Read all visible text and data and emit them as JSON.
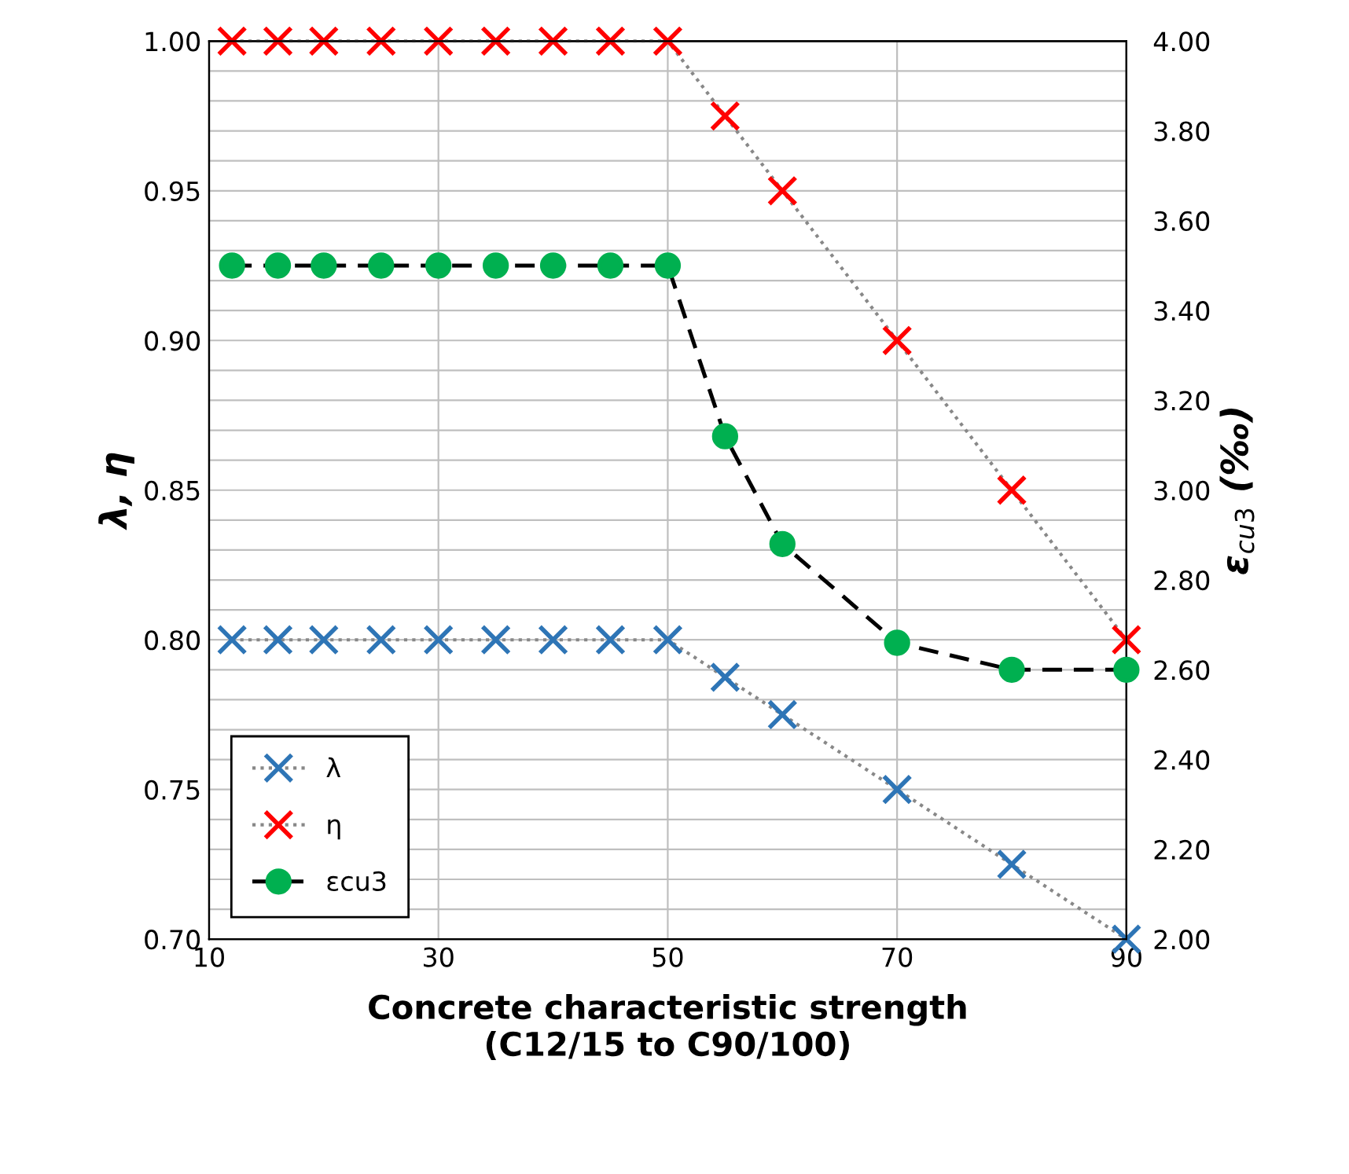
{
  "chart_data": {
    "type": "line",
    "xlabel": "Concrete characteristic strength\n(C12/15 to C90/100)",
    "ylabel": "λ, η",
    "y2label": "ε$_{cu3}$ (‰)",
    "x": [
      12,
      16,
      20,
      25,
      30,
      35,
      40,
      45,
      50,
      55,
      60,
      70,
      80,
      90
    ],
    "series": [
      {
        "name": "λ",
        "color": "#2e75b6",
        "marker": "cross",
        "line_style": "dotted",
        "values": [
          0.8,
          0.8,
          0.8,
          0.8,
          0.8,
          0.8,
          0.8,
          0.8,
          0.8,
          0.7875,
          0.775,
          0.75,
          0.725,
          0.7
        ]
      },
      {
        "name": "η",
        "color": "#ff0000",
        "marker": "cross",
        "line_style": "dotted",
        "values": [
          1.0,
          1.0,
          1.0,
          1.0,
          1.0,
          1.0,
          1.0,
          1.0,
          1.0,
          0.975,
          0.95,
          0.9,
          0.85,
          0.8
        ]
      },
      {
        "name": "εcu3",
        "color": "#00b050",
        "marker": "circle",
        "line_style": "dashed",
        "axis": "y2",
        "values": [
          3.5,
          3.5,
          3.5,
          3.5,
          3.5,
          3.5,
          3.5,
          3.5,
          3.5,
          3.12,
          2.88,
          2.66,
          2.6,
          2.6
        ]
      }
    ],
    "xlim": [
      10,
      90
    ],
    "xticks": [
      10,
      30,
      50,
      70,
      90
    ],
    "ylim": [
      0.7,
      1.0
    ],
    "yticks": [
      {
        "value": 0.7,
        "label": "0.70"
      },
      {
        "value": 0.75,
        "label": "0.75"
      },
      {
        "value": 0.8,
        "label": "0.80"
      },
      {
        "value": 0.85,
        "label": "0.85"
      },
      {
        "value": 0.9,
        "label": "0.90"
      },
      {
        "value": 0.95,
        "label": "0.95"
      },
      {
        "value": 1.0,
        "label": "1.00"
      }
    ],
    "y2lim": [
      2.0,
      4.0
    ],
    "y2ticks": [
      {
        "value": 2.0,
        "label": "2.00"
      },
      {
        "value": 2.2,
        "label": "2.20"
      },
      {
        "value": 2.4,
        "label": "2.40"
      },
      {
        "value": 2.6,
        "label": "2.60"
      },
      {
        "value": 2.8,
        "label": "2.80"
      },
      {
        "value": 3.0,
        "label": "3.00"
      },
      {
        "value": 3.2,
        "label": "3.20"
      },
      {
        "value": 3.4,
        "label": "3.40"
      },
      {
        "value": 3.6,
        "label": "3.60"
      },
      {
        "value": 3.8,
        "label": "3.80"
      },
      {
        "value": 4.0,
        "label": "4.00"
      }
    ],
    "grid": true,
    "legend": "bottom left"
  }
}
